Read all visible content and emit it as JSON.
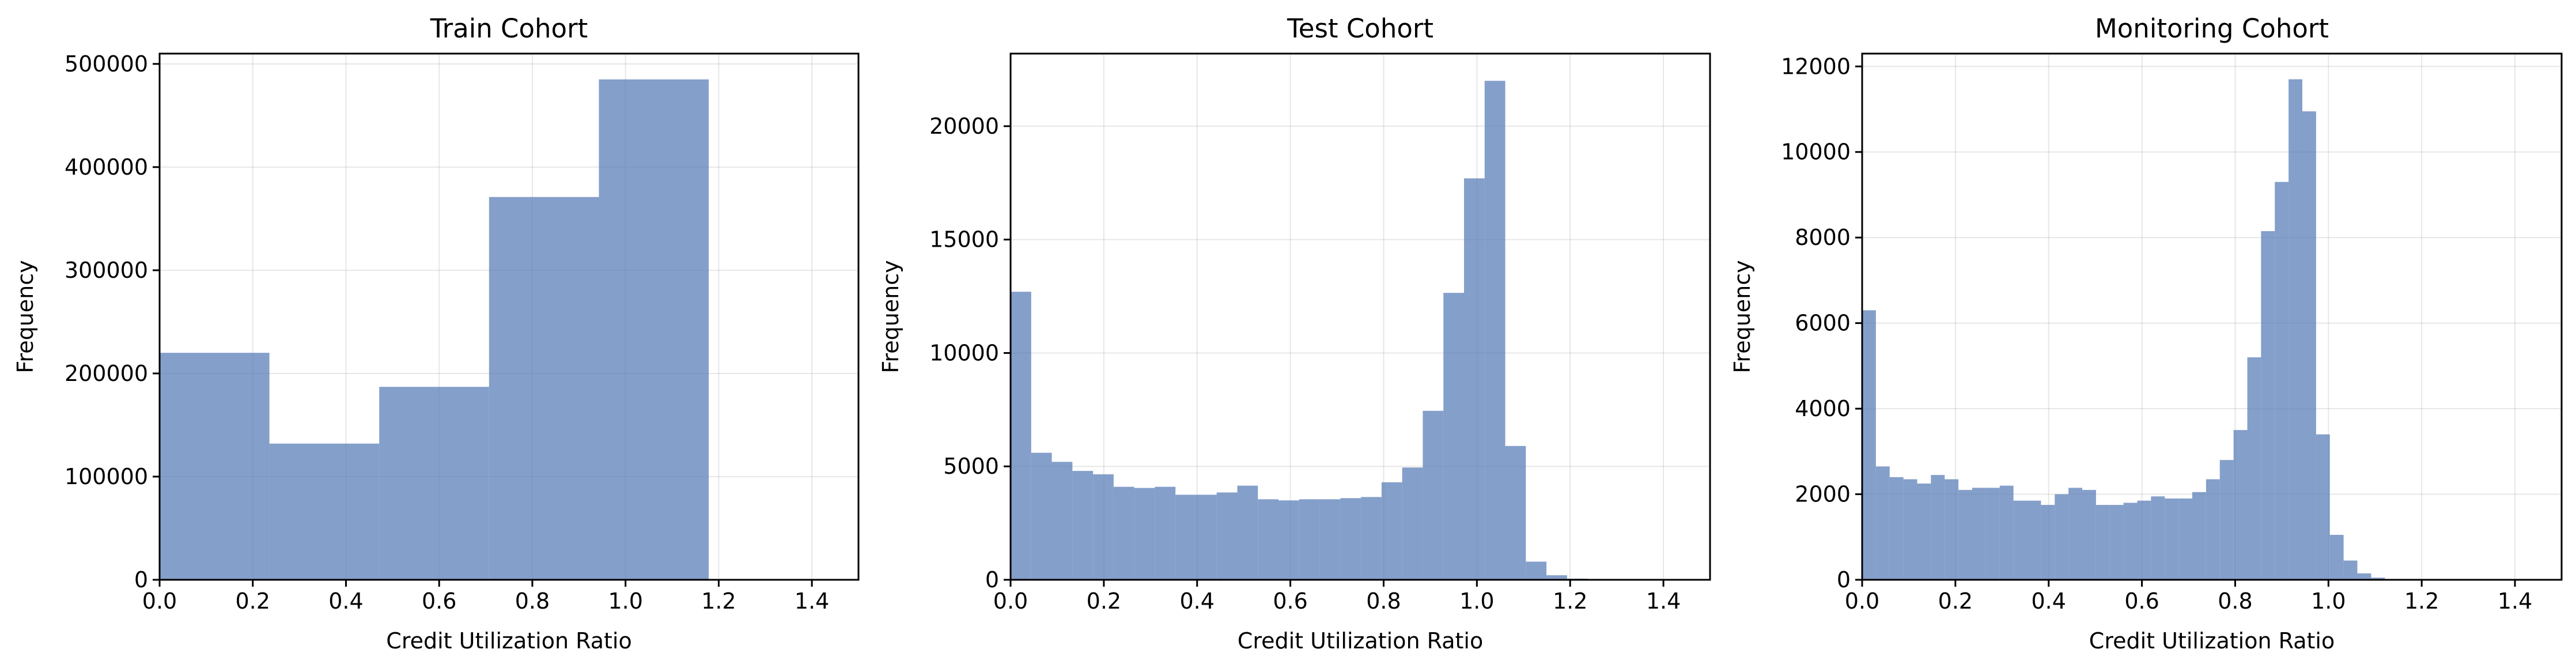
{
  "colors": {
    "bar": "#5b7fb8",
    "bar_opacity": 0.75
  },
  "chart_data": [
    {
      "type": "bar",
      "title": "Train Cohort",
      "xlabel": "Credit Utilization Ratio",
      "ylabel": "Frequency",
      "xlim": [
        0,
        1.5
      ],
      "ylim": [
        0,
        510000
      ],
      "xticks": [
        0.0,
        0.2,
        0.4,
        0.6,
        0.8,
        1.0,
        1.2,
        1.4
      ],
      "xtick_labels": [
        "0.0",
        "0.2",
        "0.4",
        "0.6",
        "0.8",
        "1.0",
        "1.2",
        "1.4"
      ],
      "yticks": [
        0,
        100000,
        200000,
        300000,
        400000,
        500000
      ],
      "ytick_labels": [
        "0",
        "100000",
        "200000",
        "300000",
        "400000",
        "500000"
      ],
      "grid": true,
      "bin_edges": [
        0.0,
        0.2357,
        0.4714,
        0.7071,
        0.9429,
        1.1786,
        1.4143
      ],
      "values": [
        220000,
        132000,
        187000,
        371000,
        485000,
        0
      ]
    },
    {
      "type": "bar",
      "title": "Test Cohort",
      "xlabel": "Credit Utilization Ratio",
      "ylabel": "Frequency",
      "xlim": [
        0,
        1.5
      ],
      "ylim": [
        0,
        23200
      ],
      "xticks": [
        0.0,
        0.2,
        0.4,
        0.6,
        0.8,
        1.0,
        1.2,
        1.4
      ],
      "xtick_labels": [
        "0.0",
        "0.2",
        "0.4",
        "0.6",
        "0.8",
        "1.0",
        "1.2",
        "1.4"
      ],
      "yticks": [
        0,
        5000,
        10000,
        15000,
        20000
      ],
      "ytick_labels": [
        "0",
        "5000",
        "10000",
        "15000",
        "20000"
      ],
      "grid": true,
      "bin_start": 0.0,
      "bin_width": 0.0442,
      "values": [
        12700,
        5600,
        5200,
        4800,
        4650,
        4100,
        4050,
        4100,
        3750,
        3750,
        3850,
        4150,
        3550,
        3500,
        3550,
        3550,
        3600,
        3650,
        4300,
        4950,
        7450,
        12650,
        17700,
        22000,
        5900,
        800,
        200,
        50,
        0,
        0,
        0,
        0
      ]
    },
    {
      "type": "bar",
      "title": "Monitoring Cohort",
      "xlabel": "Credit Utilization Ratio",
      "ylabel": "Frequency",
      "xlim": [
        0,
        1.5
      ],
      "ylim": [
        0,
        12300
      ],
      "xticks": [
        0.0,
        0.2,
        0.4,
        0.6,
        0.8,
        1.0,
        1.2,
        1.4
      ],
      "xtick_labels": [
        "0.0",
        "0.2",
        "0.4",
        "0.6",
        "0.8",
        "1.0",
        "1.2",
        "1.4"
      ],
      "yticks": [
        0,
        2000,
        4000,
        6000,
        8000,
        10000,
        12000
      ],
      "ytick_labels": [
        "0",
        "2000",
        "4000",
        "6000",
        "8000",
        "10000",
        "12000"
      ],
      "grid": true,
      "bin_start": 0.0,
      "bin_width": 0.0295,
      "values": [
        6300,
        2650,
        2400,
        2350,
        2250,
        2450,
        2350,
        2100,
        2150,
        2150,
        2200,
        1850,
        1850,
        1750,
        2000,
        2150,
        2100,
        1750,
        1750,
        1800,
        1850,
        1950,
        1900,
        1900,
        2050,
        2350,
        2800,
        3500,
        5200,
        8150,
        9300,
        11700,
        10950,
        3400,
        1050,
        450,
        150,
        50,
        0,
        0,
        0,
        0,
        0,
        0,
        0,
        0,
        0,
        0
      ]
    }
  ]
}
